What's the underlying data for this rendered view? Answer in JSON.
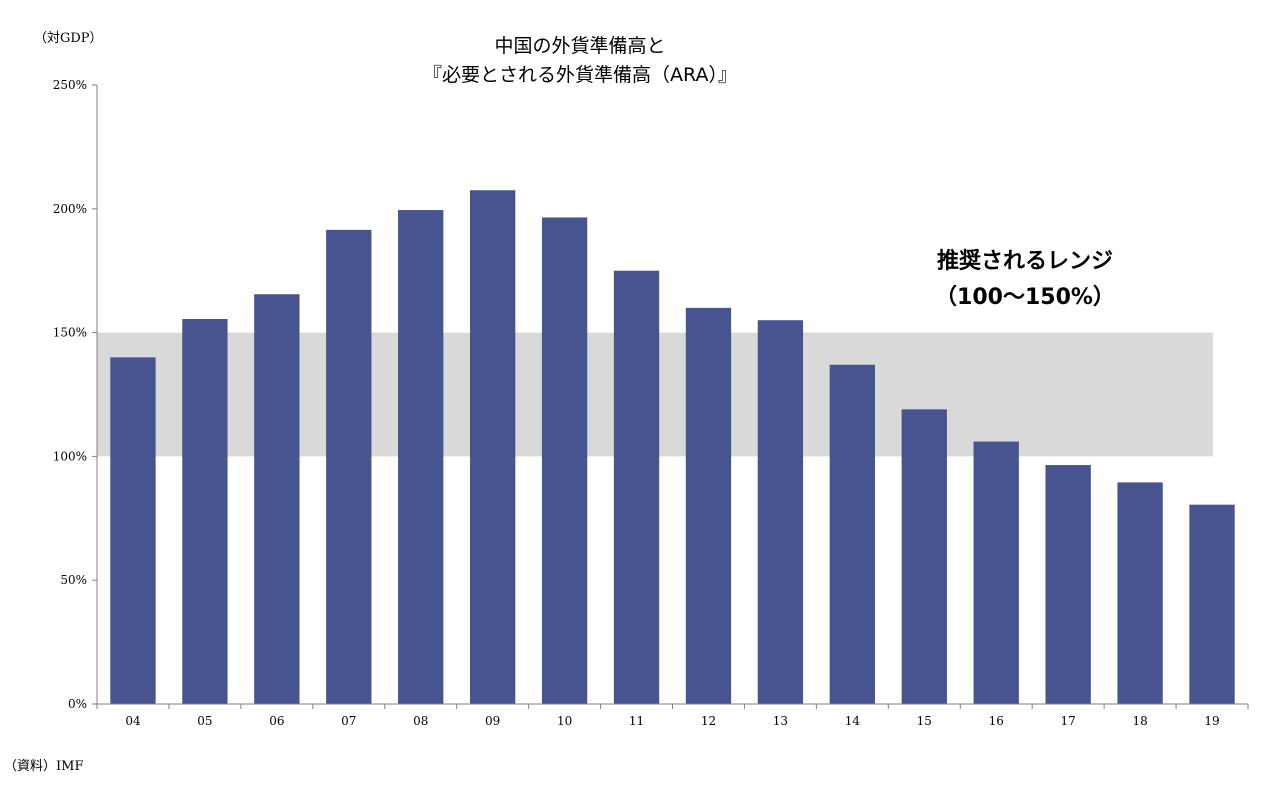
{
  "unit_label": "（対GDP）",
  "title_line1": "中国の外貨準備高と",
  "title_line2": "『必要とされる外貨準備高（ARA）』",
  "range_annotation_line1": "推奨されるレンジ",
  "range_annotation_line2": "（100〜150%）",
  "source": "（資料）IMF",
  "colors": {
    "bar": "#47548F",
    "band": "#D9D9D9",
    "axis": "#808080"
  },
  "chart_data": {
    "type": "bar",
    "categories": [
      "04",
      "05",
      "06",
      "07",
      "08",
      "09",
      "10",
      "11",
      "12",
      "13",
      "14",
      "15",
      "16",
      "17",
      "18",
      "19"
    ],
    "values": [
      140,
      155.5,
      165.5,
      191.5,
      199.5,
      207.5,
      196.5,
      175,
      160,
      155,
      137,
      119,
      106,
      96.5,
      89.5,
      80.5
    ],
    "ylim": [
      0,
      250
    ],
    "yticks": [
      0,
      50,
      100,
      150,
      200,
      250
    ],
    "ytick_labels": [
      "0%",
      "50%",
      "100%",
      "150%",
      "200%",
      "250%"
    ],
    "recommended_range": [
      100,
      150
    ],
    "grid": false,
    "legend": "none"
  }
}
